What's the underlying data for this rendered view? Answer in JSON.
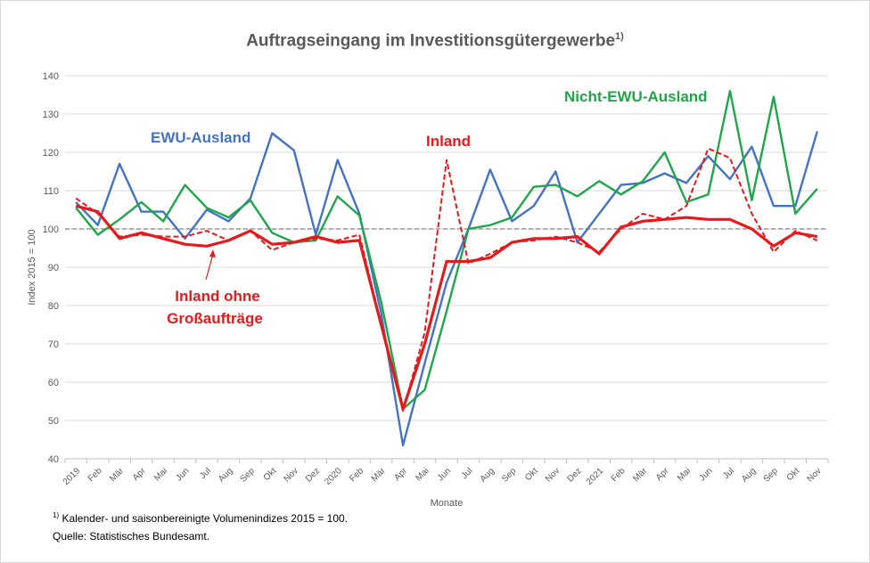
{
  "title_main": "Auftragseingang im Investitionsgütergewerbe",
  "title_note": "1)",
  "footnote_mark": "1)",
  "footnote_text": " Kalender- und saisonbereinigte Volumenindizes 2015 = 100.",
  "source": "Quelle: Statistisches Bundesamt.",
  "colors": {
    "ewu": "#4472c4",
    "nicht_ewu": "#1fa64a",
    "inland": "#e41a1c",
    "reference": "#7f7f7f",
    "grid": "#d9d9d9"
  },
  "chart_data": {
    "type": "line",
    "title": "Auftragseingang im Investitionsgütergewerbe",
    "xlabel": "Monate",
    "ylabel": "Index 2015 = 100",
    "ylim": [
      40,
      140
    ],
    "yticks": [
      40,
      50,
      60,
      70,
      80,
      90,
      100,
      110,
      120,
      130,
      140
    ],
    "grid": true,
    "reference_line": 100,
    "x": [
      "2019",
      "Feb",
      "Mär",
      "Apr",
      "Mai",
      "Jun",
      "Jul",
      "Aug",
      "Sep",
      "Okt",
      "Nov",
      "Dez",
      "2020",
      "Feb",
      "Mär",
      "Apr",
      "Mai",
      "Jun",
      "Jul",
      "Aug",
      "Sep",
      "Okt",
      "Nov",
      "Dez",
      "2021",
      "Feb",
      "Mär",
      "Apr",
      "Mai",
      "Jun",
      "Jul",
      "Aug",
      "Sep",
      "Okt",
      "Nov"
    ],
    "series": [
      {
        "name": "EWU-Ausland",
        "style": "solid",
        "color": "#4472c4",
        "values": [
          107,
          101,
          117,
          104.5,
          104.5,
          97.5,
          105,
          102,
          108,
          125,
          120.5,
          98.5,
          118,
          104,
          78,
          43.5,
          65,
          86,
          100,
          115.5,
          102,
          106,
          115,
          96.5,
          104,
          111.5,
          112,
          114.5,
          112,
          119,
          113,
          121.5,
          106,
          106,
          125.5
        ]
      },
      {
        "name": "Nicht-EWU-Ausland",
        "style": "solid",
        "color": "#1fa64a",
        "values": [
          105.5,
          98.5,
          102.5,
          107,
          102,
          111.5,
          105.5,
          103,
          107.5,
          99,
          96.5,
          97,
          108.5,
          103.5,
          81,
          53,
          58,
          78.5,
          100,
          101,
          103,
          111,
          111.5,
          108.5,
          112.5,
          109,
          112.5,
          120,
          107,
          109,
          136,
          107.5,
          134.5,
          104,
          110.5
        ]
      },
      {
        "name": "Inland",
        "style": "dashed",
        "color": "#e41a1c",
        "values": [
          108,
          104,
          98,
          98.5,
          98,
          98,
          99.5,
          97,
          99.5,
          94.5,
          96.5,
          97.5,
          97,
          98.5,
          75,
          52.5,
          73,
          118,
          91,
          93.5,
          96.5,
          97,
          98,
          96.5,
          94,
          100,
          104,
          102.5,
          106,
          121,
          118.5,
          104,
          94,
          99.5,
          97
        ]
      },
      {
        "name": "Inland ohne Großaufträge",
        "style": "solid-thick",
        "color": "#e41a1c",
        "values": [
          106,
          104.5,
          97.5,
          99,
          97.5,
          96,
          95.5,
          97,
          99.5,
          96,
          96.5,
          98,
          96.5,
          97,
          75,
          53,
          70,
          91.5,
          91.5,
          92.5,
          96.5,
          97.5,
          97.5,
          98,
          93.5,
          100.5,
          102,
          102.5,
          103,
          102.5,
          102.5,
          100,
          95.5,
          99,
          98
        ]
      }
    ],
    "annotations": [
      {
        "text": "EWU-Ausland",
        "color": "#4472c4"
      },
      {
        "text": "Nicht-EWU-Ausland",
        "color": "#1fa64a"
      },
      {
        "text": "Inland",
        "color": "#e41a1c"
      },
      {
        "text_line1": "Inland ohne",
        "text_line2": "Großaufträge",
        "color": "#e41a1c"
      }
    ]
  }
}
